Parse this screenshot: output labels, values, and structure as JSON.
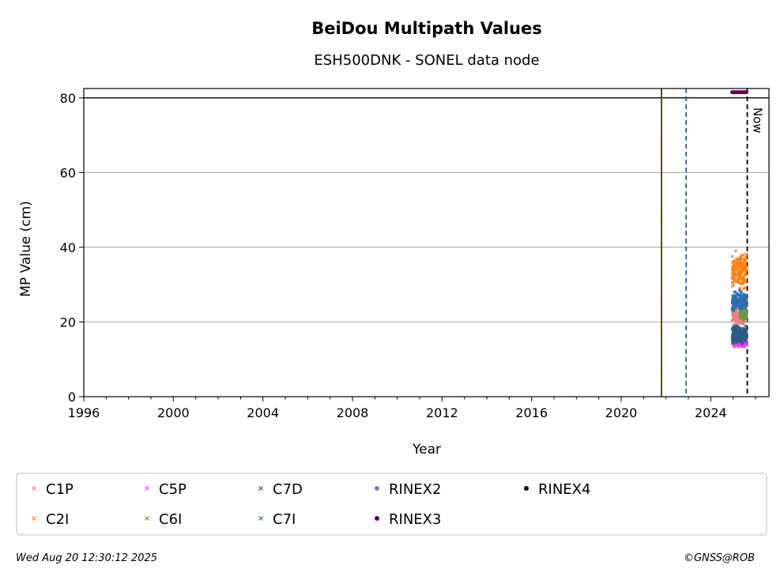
{
  "chart_data": {
    "type": "scatter",
    "title": "BeiDou Multipath Values",
    "subtitle": "ESH500DNK - SONEL data node",
    "xlabel": "Year",
    "ylabel": "MP Value (cm)",
    "xlim": [
      1996,
      2026.6
    ],
    "ylim": [
      0,
      82.5
    ],
    "x_ticks": [
      1996,
      2000,
      2004,
      2008,
      2012,
      2016,
      2020,
      2024
    ],
    "x_tick_labels": [
      "1996",
      "2000",
      "2004",
      "2008",
      "2012",
      "2016",
      "2020",
      "2024"
    ],
    "y_ticks": [
      0,
      20,
      40,
      60,
      80
    ],
    "y_tick_labels": [
      "0",
      "20",
      "40",
      "60",
      "80"
    ],
    "grid": "horizontal",
    "reference_line_y": 80,
    "vertical_lines": [
      {
        "x": 2021.8,
        "color": "#008000",
        "style": "solid"
      },
      {
        "x": 2021.8,
        "color": "#cc0000",
        "style": "dotted"
      },
      {
        "x": 2022.9,
        "color": "#1f5fa0",
        "style": "dashed"
      },
      {
        "x": 2025.63,
        "color": "#000000",
        "style": "dashed",
        "label": "Now"
      }
    ],
    "series": [
      {
        "name": "C1P",
        "color": "#f08080",
        "marker": "x",
        "x_range": [
          2024.95,
          2025.6
        ],
        "y_min": 18,
        "y_max": 24,
        "y_center": 21.5
      },
      {
        "name": "C2I",
        "color": "#ff7f0e",
        "marker": "x",
        "x_range": [
          2024.95,
          2025.6
        ],
        "y_min": 29,
        "y_max": 42,
        "y_center": 34
      },
      {
        "name": "C5P",
        "color": "#ff33ff",
        "marker": "x",
        "x_range": [
          2024.95,
          2025.6
        ],
        "y_min": 13,
        "y_max": 16,
        "y_center": 14.5
      },
      {
        "name": "C6I",
        "color": "#6a9a4a",
        "marker": "x",
        "x_range": [
          2025.3,
          2025.6
        ],
        "y_min": 20,
        "y_max": 24,
        "y_center": 22
      },
      {
        "name": "C7D",
        "color": "#2a5c8a",
        "marker": "x",
        "x_range": [
          2024.95,
          2025.6
        ],
        "y_min": 13,
        "y_max": 20,
        "y_center": 16.5
      },
      {
        "name": "C7I",
        "color": "#2f6fb0",
        "marker": "x",
        "x_range": [
          2024.95,
          2025.6
        ],
        "y_min": 22,
        "y_max": 29,
        "y_center": 25.5
      },
      {
        "name": "RINEX2",
        "color": "#7b7bc0",
        "marker": "dot"
      },
      {
        "name": "RINEX3",
        "color": "#66005a",
        "marker": "dot",
        "x_range": [
          2024.95,
          2025.6
        ],
        "y": 81.5
      },
      {
        "name": "RINEX4",
        "color": "#1a0020",
        "marker": "dot"
      }
    ]
  },
  "footer": {
    "timestamp": "Wed Aug 20 12:30:12 2025",
    "copyright": "©GNSS@ROB"
  }
}
